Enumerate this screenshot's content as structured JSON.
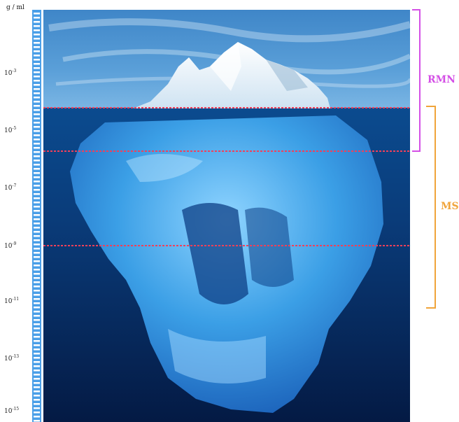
{
  "axis": {
    "unit": "g / ml",
    "ticks": [
      {
        "base": "10",
        "exp": "-3"
      },
      {
        "base": "10",
        "exp": "-5"
      },
      {
        "base": "10",
        "exp": "-7"
      },
      {
        "base": "10",
        "exp": "-9"
      },
      {
        "base": "10",
        "exp": "-11"
      },
      {
        "base": "10",
        "exp": "-13"
      },
      {
        "base": "10",
        "exp": "-15"
      }
    ]
  },
  "brackets": {
    "rmn": {
      "label": "RMN",
      "color": "#d44fe6"
    },
    "ms": {
      "label": "MS",
      "color": "#f0a43a"
    }
  },
  "colors": {
    "threshold_line": "#f0405a",
    "ruler": "#4a9fe8"
  }
}
